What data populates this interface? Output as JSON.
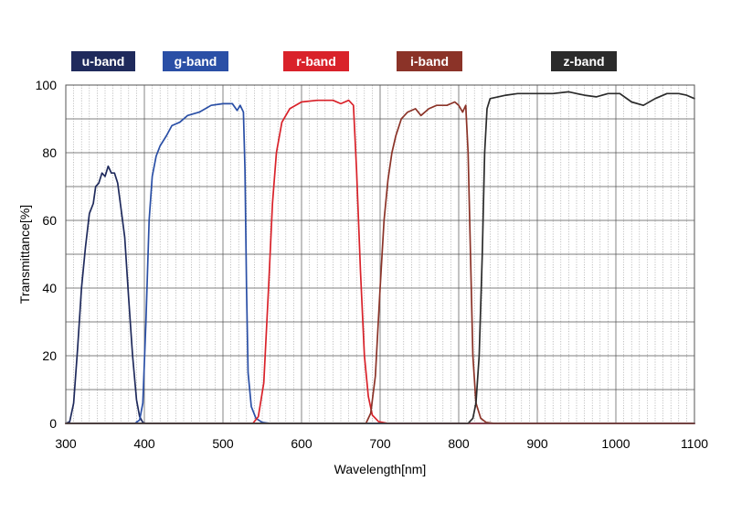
{
  "chart_data": {
    "type": "line",
    "xlabel": "Wavelength[nm]",
    "ylabel": "Transmittance[%]",
    "xlim": [
      300,
      1100
    ],
    "ylim": [
      0,
      100
    ],
    "x_ticks": [
      300,
      400,
      500,
      600,
      700,
      800,
      900,
      1000,
      1100
    ],
    "y_ticks": [
      0,
      20,
      40,
      60,
      80,
      100
    ],
    "grid": true,
    "legend_placement": "top",
    "series": [
      {
        "name": "u-band",
        "color": "#1f2a5c",
        "points": [
          [
            300,
            0
          ],
          [
            305,
            0.5
          ],
          [
            310,
            6
          ],
          [
            315,
            22
          ],
          [
            320,
            40
          ],
          [
            325,
            52
          ],
          [
            330,
            62
          ],
          [
            335,
            65
          ],
          [
            338,
            70
          ],
          [
            342,
            71
          ],
          [
            346,
            74
          ],
          [
            350,
            73
          ],
          [
            354,
            76
          ],
          [
            358,
            74
          ],
          [
            362,
            74
          ],
          [
            366,
            71
          ],
          [
            370,
            64
          ],
          [
            375,
            55
          ],
          [
            380,
            37
          ],
          [
            385,
            20
          ],
          [
            390,
            7
          ],
          [
            394,
            2
          ],
          [
            398,
            0.3
          ],
          [
            402,
            0
          ],
          [
            1100,
            0
          ]
        ]
      },
      {
        "name": "g-band",
        "color": "#2a4fa6",
        "points": [
          [
            300,
            0
          ],
          [
            388,
            0
          ],
          [
            394,
            1
          ],
          [
            398,
            6
          ],
          [
            402,
            30
          ],
          [
            406,
            60
          ],
          [
            410,
            73
          ],
          [
            415,
            79
          ],
          [
            420,
            82
          ],
          [
            428,
            85
          ],
          [
            435,
            88
          ],
          [
            445,
            89
          ],
          [
            455,
            91
          ],
          [
            470,
            92
          ],
          [
            485,
            94
          ],
          [
            500,
            94.5
          ],
          [
            512,
            94.5
          ],
          [
            518,
            92.5
          ],
          [
            522,
            94
          ],
          [
            526,
            92
          ],
          [
            528,
            75
          ],
          [
            530,
            40
          ],
          [
            532,
            15
          ],
          [
            536,
            5
          ],
          [
            542,
            1.5
          ],
          [
            550,
            0.3
          ],
          [
            560,
            0
          ],
          [
            1100,
            0
          ]
        ]
      },
      {
        "name": "r-band",
        "color": "#d9222a",
        "points": [
          [
            300,
            0
          ],
          [
            538,
            0
          ],
          [
            545,
            2
          ],
          [
            552,
            12
          ],
          [
            558,
            40
          ],
          [
            563,
            65
          ],
          [
            568,
            80
          ],
          [
            575,
            89
          ],
          [
            585,
            93
          ],
          [
            600,
            95
          ],
          [
            620,
            95.5
          ],
          [
            640,
            95.5
          ],
          [
            650,
            94.5
          ],
          [
            660,
            95.5
          ],
          [
            666,
            94
          ],
          [
            670,
            75
          ],
          [
            675,
            45
          ],
          [
            680,
            20
          ],
          [
            685,
            8
          ],
          [
            690,
            2.5
          ],
          [
            698,
            0.5
          ],
          [
            710,
            0
          ],
          [
            1100,
            0
          ]
        ]
      },
      {
        "name": "i-band",
        "color": "#8b3328",
        "points": [
          [
            300,
            0
          ],
          [
            682,
            0
          ],
          [
            688,
            3
          ],
          [
            694,
            14
          ],
          [
            700,
            40
          ],
          [
            705,
            60
          ],
          [
            710,
            72
          ],
          [
            715,
            80
          ],
          [
            720,
            85
          ],
          [
            727,
            90
          ],
          [
            735,
            92
          ],
          [
            745,
            93
          ],
          [
            752,
            91
          ],
          [
            762,
            93
          ],
          [
            772,
            94
          ],
          [
            785,
            94
          ],
          [
            795,
            95
          ],
          [
            800,
            94
          ],
          [
            805,
            92
          ],
          [
            809,
            94
          ],
          [
            812,
            80
          ],
          [
            815,
            50
          ],
          [
            818,
            20
          ],
          [
            822,
            6
          ],
          [
            828,
            1.5
          ],
          [
            835,
            0.3
          ],
          [
            845,
            0
          ],
          [
            1100,
            0
          ]
        ]
      },
      {
        "name": "z-band",
        "color": "#2b2b2b",
        "points": [
          [
            300,
            0
          ],
          [
            812,
            0
          ],
          [
            818,
            1.5
          ],
          [
            822,
            6
          ],
          [
            826,
            20
          ],
          [
            830,
            50
          ],
          [
            833,
            80
          ],
          [
            836,
            93
          ],
          [
            840,
            96
          ],
          [
            850,
            96.5
          ],
          [
            860,
            97
          ],
          [
            875,
            97.5
          ],
          [
            890,
            97.5
          ],
          [
            905,
            97.5
          ],
          [
            920,
            97.5
          ],
          [
            940,
            98
          ],
          [
            960,
            97
          ],
          [
            975,
            96.5
          ],
          [
            990,
            97.5
          ],
          [
            1005,
            97.5
          ],
          [
            1020,
            95
          ],
          [
            1035,
            94
          ],
          [
            1050,
            96
          ],
          [
            1065,
            97.5
          ],
          [
            1080,
            97.5
          ],
          [
            1090,
            97
          ],
          [
            1100,
            96
          ]
        ]
      }
    ]
  }
}
